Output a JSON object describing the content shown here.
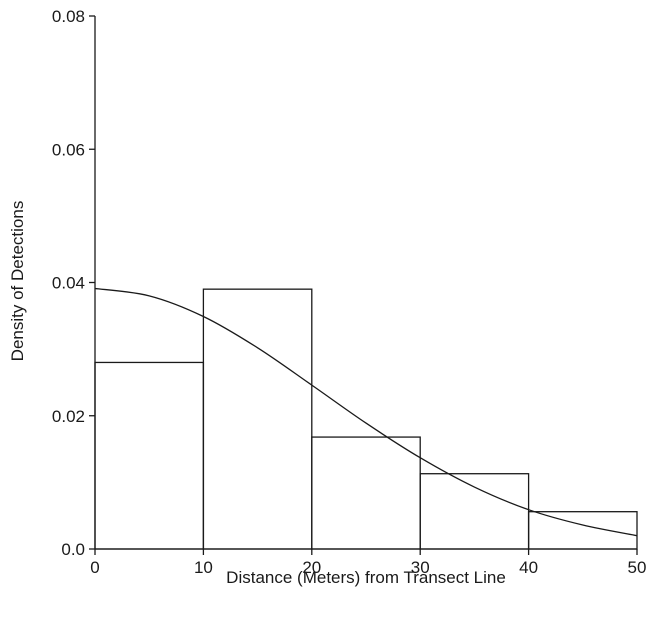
{
  "chart_data": {
    "type": "bar",
    "title": "",
    "xlabel": "Distance (Meters) from Transect Line",
    "ylabel": "Density of Detections",
    "xlim": [
      0,
      50
    ],
    "ylim": [
      0,
      0.08
    ],
    "grid": false,
    "x_ticks": [
      0,
      10,
      20,
      30,
      40,
      50
    ],
    "x_tick_labels": [
      "0",
      "10",
      "20",
      "30",
      "40",
      "50"
    ],
    "y_ticks": [
      0.0,
      0.02,
      0.04,
      0.06,
      0.08
    ],
    "y_tick_labels": [
      "0.0",
      "0.02",
      "0.04",
      "0.06",
      "0.08"
    ],
    "bins": [
      {
        "x0": 0,
        "x1": 10,
        "value": 0.028
      },
      {
        "x0": 10,
        "x1": 20,
        "value": 0.039
      },
      {
        "x0": 20,
        "x1": 30,
        "value": 0.0168
      },
      {
        "x0": 30,
        "x1": 40,
        "value": 0.0113
      },
      {
        "x0": 40,
        "x1": 50,
        "value": 0.0056
      }
    ],
    "fitted_curve": {
      "type": "half-normal",
      "x": [
        0,
        5,
        10,
        15,
        20,
        25,
        30,
        35,
        40,
        45,
        50
      ],
      "y": [
        0.0391,
        0.038,
        0.0349,
        0.0302,
        0.0246,
        0.0189,
        0.0137,
        0.0093,
        0.0059,
        0.0036,
        0.002
      ]
    }
  }
}
